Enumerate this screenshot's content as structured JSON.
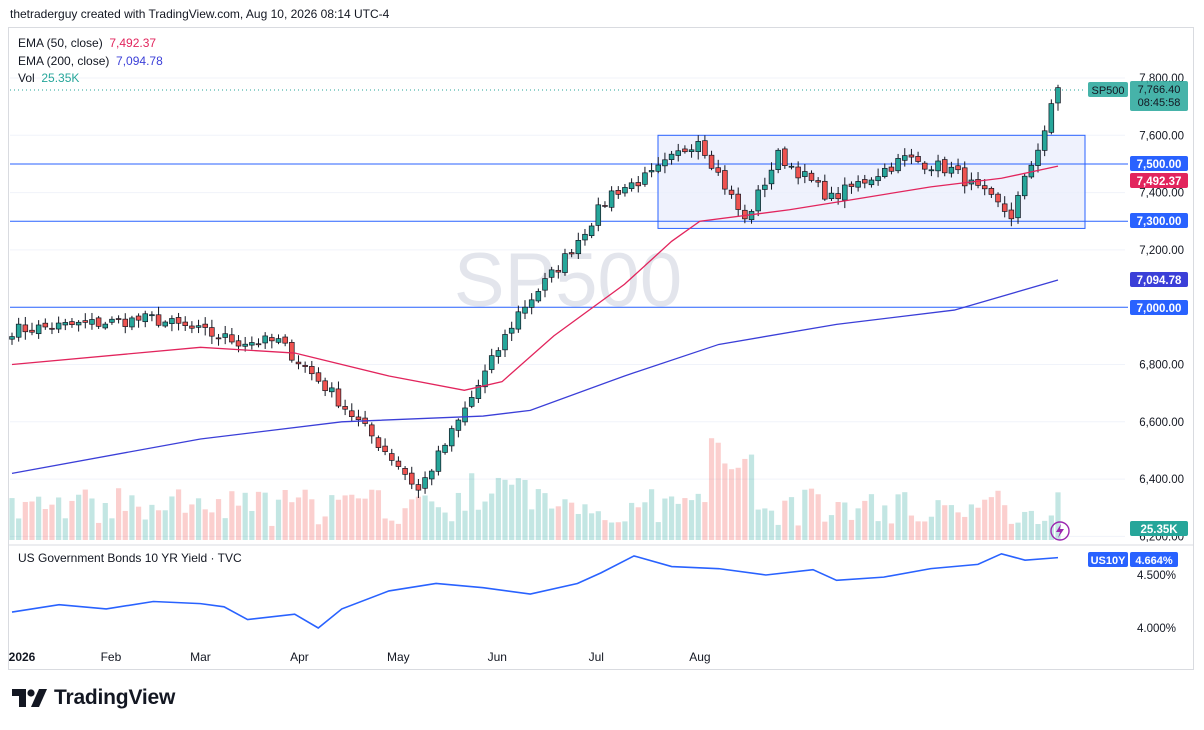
{
  "header": {
    "title": "thetraderguy created with TradingView.com, Aug 10, 2026 08:14 UTC-4"
  },
  "watermark": "SP500",
  "legend": {
    "ema50_label": "EMA (50, close)",
    "ema50_value": "7,492.37",
    "ema200_label": "EMA (200, close)",
    "ema200_value": "7,094.78",
    "vol_label": "Vol",
    "vol_value": "25.35K"
  },
  "price_badge": {
    "symbol": "SP500",
    "price": "7,766.40",
    "countdown": "08:45:58"
  },
  "right_labels": {
    "level_7500": "7,500.00",
    "ema50": "7,492.37",
    "level_7300": "7,300.00",
    "ema200": "7,094.78",
    "level_7000": "7,000.00",
    "volume": "25.35K"
  },
  "yield_pane": {
    "title": "US Government Bonds 10 YR Yield · TVC",
    "symbol": "US10Y",
    "value": "4.664%"
  },
  "brand": {
    "name": "TradingView"
  },
  "colors": {
    "up": "#26a69a",
    "down": "#ef5350",
    "ema50": "#e2255d",
    "ema200": "#3b3fd8",
    "levels": "#2962ff",
    "yield": "#2962ff",
    "box_fill": "#e9eefc"
  },
  "chart_data": [
    {
      "type": "candlestick",
      "title": "SP500",
      "y_ticks": [
        "7,800.00",
        "7,600.00",
        "7,400.00",
        "7,200.00",
        "7,000.00",
        "6,800.00",
        "6,600.00",
        "6,400.00",
        "6,200.00"
      ],
      "x_ticks": [
        "2026",
        "Feb",
        "Mar",
        "Apr",
        "May",
        "Jun",
        "Jul",
        "Aug"
      ],
      "ylim": [
        6170,
        7870
      ],
      "horizontal_levels": [
        7500,
        7300,
        7000
      ],
      "consolidation_box": {
        "y_low": 7275,
        "y_high": 7600,
        "from": "mid-May",
        "to": "Aug"
      },
      "key_points": [
        {
          "date": "Jan 2",
          "close": 6920
        },
        {
          "date": "Feb 1",
          "close": 6960
        },
        {
          "date": "Feb 20",
          "close": 6880
        },
        {
          "date": "Mar 1",
          "close": 6880
        },
        {
          "date": "Mar 12",
          "close": 6700
        },
        {
          "date": "Mar 26",
          "close": 6450
        },
        {
          "date": "Apr 1",
          "close": 6360
        },
        {
          "date": "Apr 10",
          "close": 6600
        },
        {
          "date": "Apr 22",
          "close": 6980
        },
        {
          "date": "May 1",
          "close": 7140
        },
        {
          "date": "May 12",
          "close": 7400
        },
        {
          "date": "May 20",
          "close": 7460
        },
        {
          "date": "Jun 1",
          "close": 7590
        },
        {
          "date": "Jun 10",
          "close": 7300
        },
        {
          "date": "Jun 16",
          "close": 7530
        },
        {
          "date": "Jun 26",
          "close": 7380
        },
        {
          "date": "Jul 10",
          "close": 7520
        },
        {
          "date": "Jul 20",
          "close": 7480
        },
        {
          "date": "Jul 29",
          "close": 7320
        },
        {
          "date": "Aug 3",
          "close": 7620
        },
        {
          "date": "Aug 10",
          "close": 7766.4
        }
      ],
      "series": [
        {
          "name": "EMA (50, close)",
          "points": [
            [
              0,
              6800
            ],
            [
              40,
              6860
            ],
            [
              60,
              6840
            ],
            [
              80,
              6760
            ],
            [
              96,
              6710
            ],
            [
              104,
              6740
            ],
            [
              115,
              6900
            ],
            [
              130,
              7080
            ],
            [
              140,
              7230
            ],
            [
              146,
              7300
            ],
            [
              165,
              7340
            ],
            [
              180,
              7380
            ],
            [
              195,
              7420
            ],
            [
              210,
              7450
            ],
            [
              222,
              7492.37
            ]
          ]
        },
        {
          "name": "EMA (200, close)",
          "points": [
            [
              0,
              6420
            ],
            [
              40,
              6540
            ],
            [
              70,
              6600
            ],
            [
              100,
              6620
            ],
            [
              110,
              6640
            ],
            [
              130,
              6760
            ],
            [
              150,
              6870
            ],
            [
              175,
              6940
            ],
            [
              200,
              6990
            ],
            [
              222,
              7094.78
            ]
          ]
        }
      ]
    },
    {
      "type": "line",
      "title": "US Government Bonds 10 YR Yield · TVC",
      "y_ticks": [
        "4.500%",
        "4.000%"
      ],
      "ylim": [
        3.85,
        4.85
      ],
      "series": [
        {
          "name": "US10Y",
          "points": [
            [
              0,
              4.15
            ],
            [
              10,
              4.22
            ],
            [
              20,
              4.18
            ],
            [
              30,
              4.25
            ],
            [
              40,
              4.23
            ],
            [
              45,
              4.2
            ],
            [
              50,
              4.08
            ],
            [
              60,
              4.13
            ],
            [
              65,
              4.0
            ],
            [
              70,
              4.18
            ],
            [
              80,
              4.35
            ],
            [
              90,
              4.42
            ],
            [
              100,
              4.38
            ],
            [
              110,
              4.32
            ],
            [
              120,
              4.42
            ],
            [
              125,
              4.52
            ],
            [
              132,
              4.68
            ],
            [
              140,
              4.58
            ],
            [
              150,
              4.56
            ],
            [
              160,
              4.5
            ],
            [
              170,
              4.55
            ],
            [
              175,
              4.45
            ],
            [
              185,
              4.48
            ],
            [
              195,
              4.56
            ],
            [
              205,
              4.6
            ],
            [
              210,
              4.7
            ],
            [
              215,
              4.64
            ],
            [
              222,
              4.664
            ]
          ]
        }
      ]
    }
  ]
}
